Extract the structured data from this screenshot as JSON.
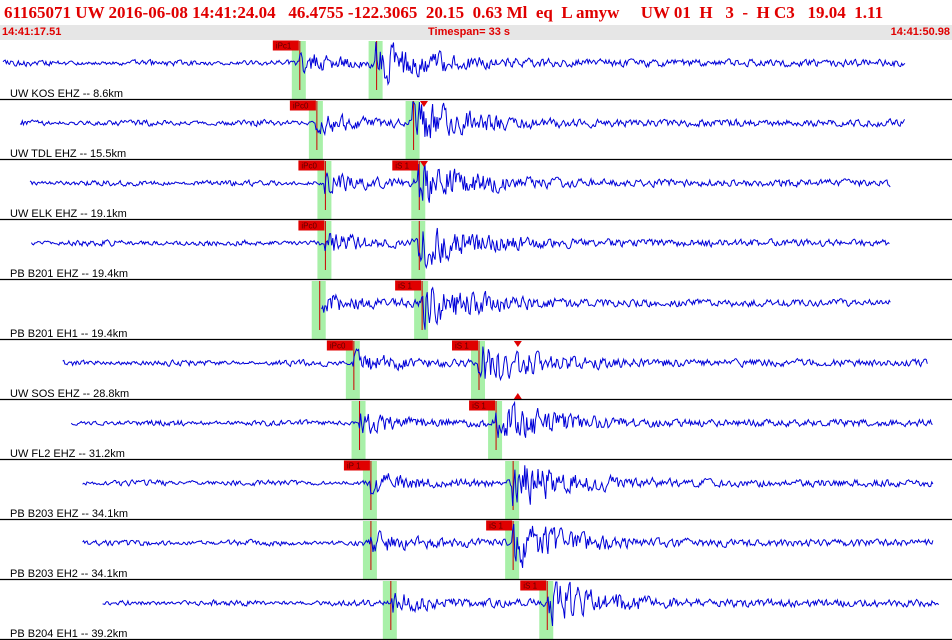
{
  "header": {
    "title": "61165071 UW 2016-06-08 14:41:24.04   46.4755 -122.3065  20.15  0.63 Ml  eq  L amyw     UW 01  H   3  -  H C3   19.04  1.11",
    "start_time": "14:41:17.51",
    "timespan": "Timespan=  33 s",
    "end_time": "14:41:50.98"
  },
  "colors": {
    "waveform": "#0000d8",
    "pick_flag": "#e00000",
    "pick_window": "#a8f0a8",
    "pick_line": "#cc0000",
    "title_text": "#e00000",
    "subheader_bg": "#e6e6e6",
    "separator": "#000000"
  },
  "time_axis": {
    "start_s": 0,
    "end_s": 33.47
  },
  "traces": [
    {
      "label": "UW KOS EHZ -- 8.6km",
      "data_start_s": 0.0,
      "data_end_s": 31.75,
      "picks": [
        {
          "type": "P",
          "label": "iPc1",
          "time_s": 10.4
        },
        {
          "type": "S",
          "label": "",
          "time_s": 13.1
        }
      ]
    },
    {
      "label": "UW TDL EHZ -- 15.5km",
      "data_start_s": 0.6,
      "data_end_s": 31.7,
      "picks": [
        {
          "type": "P",
          "label": "iPc0",
          "time_s": 11.0
        },
        {
          "type": "S",
          "label": "",
          "time_s": 14.4
        }
      ],
      "markers": [
        14.8
      ]
    },
    {
      "label": "UW ELK EHZ -- 19.1km",
      "data_start_s": 0.95,
      "data_end_s": 31.2,
      "picks": [
        {
          "type": "P",
          "label": "iPc0",
          "time_s": 11.3
        },
        {
          "type": "S",
          "label": "iS 1",
          "time_s": 14.6
        }
      ],
      "markers": [
        14.8
      ]
    },
    {
      "label": "PB B201 EHZ -- 19.4km",
      "data_start_s": 1.0,
      "data_end_s": 31.2,
      "picks": [
        {
          "type": "P",
          "label": "iPc0",
          "time_s": 11.3
        },
        {
          "type": "S",
          "label": "",
          "time_s": 14.6
        }
      ]
    },
    {
      "label": "PB B201 EH1 -- 19.4km",
      "data_start_s": 11.2,
      "data_end_s": 31.2,
      "picks": [
        {
          "type": "P",
          "label": "",
          "time_s": 11.1
        },
        {
          "type": "S",
          "label": "iS 1",
          "time_s": 14.7
        }
      ]
    },
    {
      "label": "UW SOS EHZ -- 28.8km",
      "data_start_s": 2.1,
      "data_end_s": 32.5,
      "picks": [
        {
          "type": "P",
          "label": "iPc0",
          "time_s": 12.3
        },
        {
          "type": "S",
          "label": "iS 1",
          "time_s": 16.7
        }
      ],
      "markers": [
        18.1
      ]
    },
    {
      "label": "UW FL2 EHZ -- 31.2km",
      "data_start_s": 2.4,
      "data_end_s": 32.7,
      "picks": [
        {
          "type": "P",
          "label": "",
          "time_s": 12.5
        },
        {
          "type": "S",
          "label": "iS 1",
          "time_s": 17.3
        }
      ]
    },
    {
      "label": "PB B203 EHZ -- 34.1km",
      "data_start_s": 2.8,
      "data_end_s": 32.7,
      "picks": [
        {
          "type": "P",
          "label": "iP 1",
          "time_s": 12.9
        },
        {
          "type": "S",
          "label": "",
          "time_s": 17.9
        }
      ]
    },
    {
      "label": "PB B203 EH2 -- 34.1km",
      "data_start_s": 2.8,
      "data_end_s": 32.7,
      "picks": [
        {
          "type": "P",
          "label": "",
          "time_s": 12.9
        },
        {
          "type": "S",
          "label": "iS 1",
          "time_s": 17.9
        }
      ]
    },
    {
      "label": "PB B204 EH1 -- 39.2km",
      "data_start_s": 3.5,
      "data_end_s": 32.9,
      "picks": [
        {
          "type": "P",
          "label": "",
          "time_s": 13.6
        },
        {
          "type": "S",
          "label": "iS 1",
          "time_s": 19.1
        }
      ]
    }
  ]
}
